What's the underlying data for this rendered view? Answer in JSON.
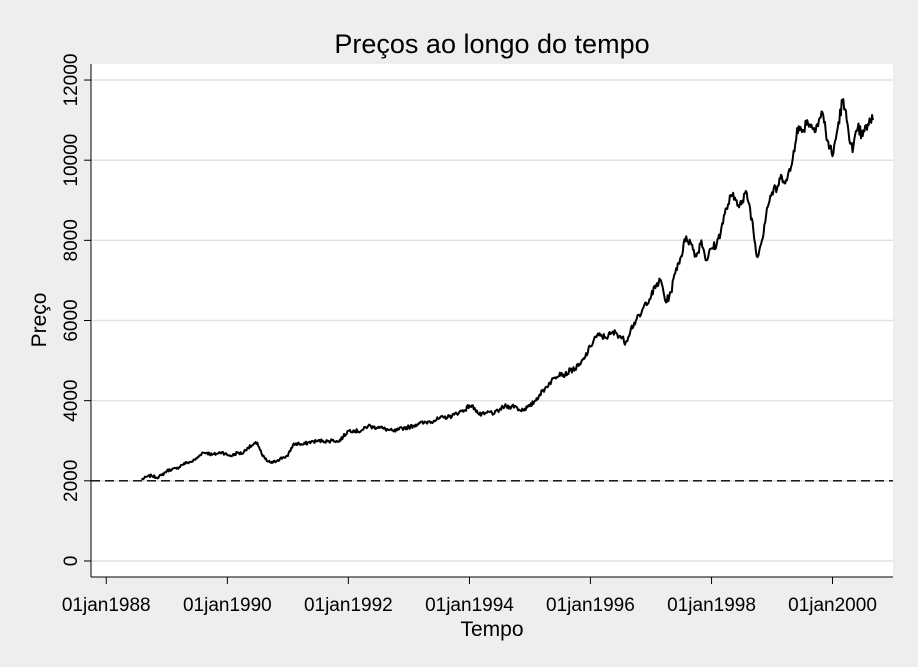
{
  "chart_data": {
    "type": "line",
    "title": "Preços ao longo do tempo",
    "xlabel": "Tempo",
    "ylabel": "Preço",
    "x_ticks": [
      "01jan1988",
      "01jan1990",
      "01jan1992",
      "01jan1994",
      "01jan1996",
      "01jan1998",
      "01jan2000"
    ],
    "y_ticks": [
      0,
      2000,
      4000,
      6000,
      8000,
      10000,
      12000
    ],
    "xlim": [
      "1987-10-01",
      "2000-12-31"
    ],
    "ylim": [
      -400,
      12400
    ],
    "grid": "horizontal",
    "reference_line": {
      "y": 2000,
      "style": "dashed"
    },
    "series": [
      {
        "x": [
          "1988-08",
          "1988-09",
          "1988-10",
          "1988-11",
          "1988-12",
          "1989-01",
          "1989-02",
          "1989-03",
          "1989-04",
          "1989-05",
          "1989-06",
          "1989-07",
          "1989-08",
          "1989-09",
          "1989-10",
          "1989-11",
          "1989-12",
          "1990-01",
          "1990-02",
          "1990-03",
          "1990-04",
          "1990-05",
          "1990-06",
          "1990-07",
          "1990-08",
          "1990-09",
          "1990-10",
          "1990-11",
          "1990-12",
          "1991-01",
          "1991-02",
          "1991-03",
          "1991-04",
          "1991-05",
          "1991-06",
          "1991-07",
          "1991-08",
          "1991-09",
          "1991-10",
          "1991-11",
          "1991-12",
          "1992-01",
          "1992-02",
          "1992-03",
          "1992-04",
          "1992-05",
          "1992-06",
          "1992-07",
          "1992-08",
          "1992-09",
          "1992-10",
          "1992-11",
          "1992-12",
          "1993-01",
          "1993-02",
          "1993-03",
          "1993-04",
          "1993-05",
          "1993-06",
          "1993-07",
          "1993-08",
          "1993-09",
          "1993-10",
          "1993-11",
          "1993-12",
          "1994-01",
          "1994-02",
          "1994-03",
          "1994-04",
          "1994-05",
          "1994-06",
          "1994-07",
          "1994-08",
          "1994-09",
          "1994-10",
          "1994-11",
          "1994-12",
          "1995-01",
          "1995-02",
          "1995-03",
          "1995-04",
          "1995-05",
          "1995-06",
          "1995-07",
          "1995-08",
          "1995-09",
          "1995-10",
          "1995-11",
          "1995-12",
          "1996-01",
          "1996-02",
          "1996-03",
          "1996-04",
          "1996-05",
          "1996-06",
          "1996-07",
          "1996-08",
          "1996-09",
          "1996-10",
          "1996-11",
          "1996-12",
          "1997-01",
          "1997-02",
          "1997-03",
          "1997-04",
          "1997-05",
          "1997-06",
          "1997-07",
          "1997-08",
          "1997-09",
          "1997-10",
          "1997-11",
          "1997-12",
          "1998-01",
          "1998-02",
          "1998-03",
          "1998-04",
          "1998-05",
          "1998-06",
          "1998-07",
          "1998-08",
          "1998-09",
          "1998-10",
          "1998-11",
          "1998-12",
          "1999-01",
          "1999-02",
          "1999-03",
          "1999-04",
          "1999-05",
          "1999-06",
          "1999-07",
          "1999-08",
          "1999-09",
          "1999-10",
          "1999-11",
          "1999-12",
          "2000-01",
          "2000-02",
          "2000-03",
          "2000-04",
          "2000-05",
          "2000-06",
          "2000-07",
          "2000-08",
          "2000-09"
        ],
        "y": [
          2030,
          2100,
          2130,
          2080,
          2140,
          2250,
          2290,
          2300,
          2400,
          2450,
          2480,
          2560,
          2700,
          2700,
          2650,
          2680,
          2720,
          2640,
          2630,
          2700,
          2680,
          2820,
          2880,
          2950,
          2620,
          2480,
          2450,
          2520,
          2580,
          2620,
          2900,
          2930,
          2900,
          2950,
          2980,
          2990,
          3000,
          2980,
          3020,
          2970,
          3100,
          3250,
          3260,
          3230,
          3280,
          3380,
          3330,
          3350,
          3300,
          3270,
          3230,
          3280,
          3320,
          3340,
          3380,
          3440,
          3440,
          3480,
          3500,
          3550,
          3580,
          3600,
          3650,
          3720,
          3760,
          3880,
          3820,
          3650,
          3660,
          3720,
          3680,
          3770,
          3860,
          3850,
          3870,
          3760,
          3800,
          3860,
          4000,
          4150,
          4300,
          4450,
          4580,
          4700,
          4640,
          4760,
          4800,
          4900,
          5100,
          5350,
          5600,
          5620,
          5580,
          5660,
          5700,
          5600,
          5450,
          5800,
          5990,
          6150,
          6450,
          6600,
          6880,
          7000,
          6450,
          6700,
          7300,
          7600,
          8100,
          7900,
          7600,
          8000,
          7500,
          7800,
          7900,
          8300,
          8800,
          9100,
          9000,
          8900,
          9200,
          8550,
          7600,
          8000,
          8800,
          9200,
          9300,
          9600,
          9500,
          9900,
          10800,
          10700,
          11000,
          10800,
          10900,
          11200,
          10500,
          10100,
          10800,
          11500,
          10900,
          10200,
          10800,
          10600,
          10900,
          11000
        ]
      }
    ]
  }
}
